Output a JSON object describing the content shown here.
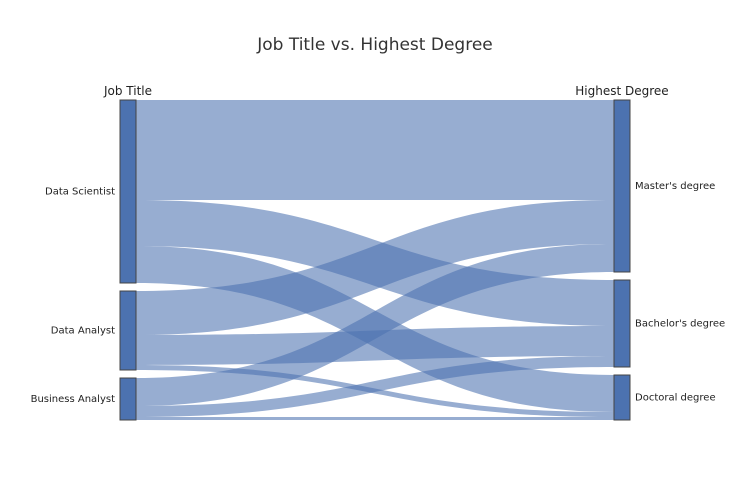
{
  "chart_data": {
    "type": "sankey",
    "title": "Job Title vs. Highest Degree",
    "dimensions": [
      {
        "label": "Job Title",
        "categories": [
          "Data Scientist",
          "Data Analyst",
          "Business Analyst"
        ]
      },
      {
        "label": "Highest Degree",
        "categories": [
          "Master's degree",
          "Bachelor's degree",
          "Doctoral degree"
        ]
      }
    ],
    "flows": [
      {
        "source": "Data Scientist",
        "target": "Master's degree",
        "value": 100
      },
      {
        "source": "Data Scientist",
        "target": "Bachelor's degree",
        "value": 46
      },
      {
        "source": "Data Scientist",
        "target": "Doctoral degree",
        "value": 37
      },
      {
        "source": "Data Analyst",
        "target": "Master's degree",
        "value": 44
      },
      {
        "source": "Data Analyst",
        "target": "Bachelor's degree",
        "value": 30
      },
      {
        "source": "Data Analyst",
        "target": "Doctoral degree",
        "value": 5
      },
      {
        "source": "Business Analyst",
        "target": "Master's degree",
        "value": 28
      },
      {
        "source": "Business Analyst",
        "target": "Bachelor's degree",
        "value": 11
      },
      {
        "source": "Business Analyst",
        "target": "Doctoral degree",
        "value": 3
      }
    ],
    "colors": {
      "node": "#4c72b0",
      "node_border": "#444444",
      "link": "rgba(76,114,176,0.58)"
    }
  }
}
